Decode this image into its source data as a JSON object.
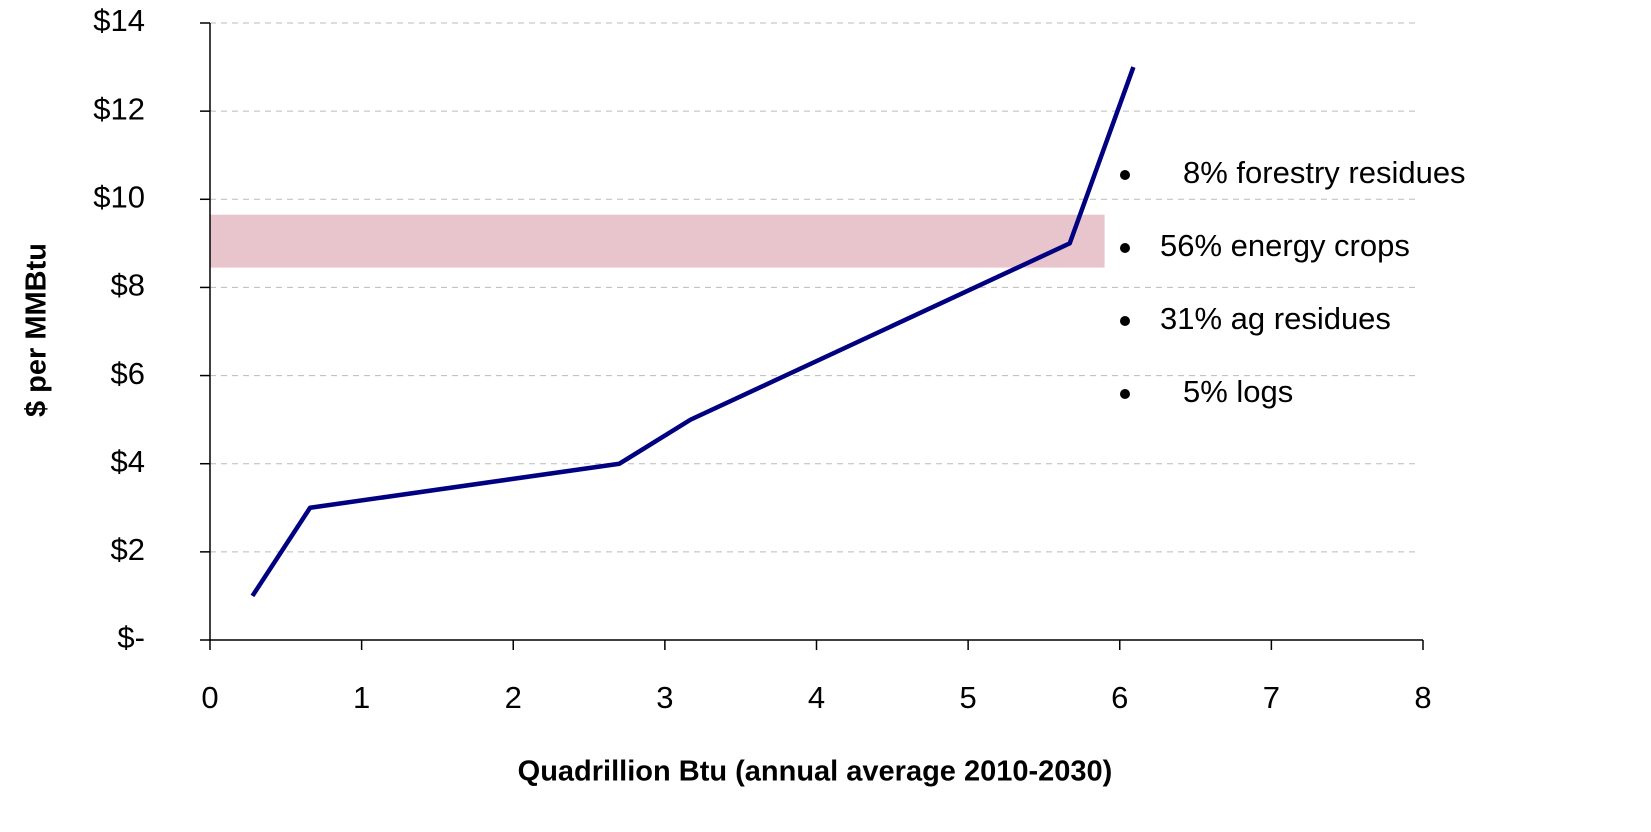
{
  "chart_data": {
    "type": "line",
    "x_label": "Quadrillion Btu (annual average 2010-2030)",
    "y_label": "$ per MMBtu",
    "xlim": [
      0,
      8
    ],
    "xticks": [
      0,
      1,
      2,
      3,
      4,
      5,
      6,
      7,
      8
    ],
    "ylim": [
      0,
      14
    ],
    "yticks": [
      {
        "value": 0,
        "label": "$-"
      },
      {
        "value": 2,
        "label": "$2"
      },
      {
        "value": 4,
        "label": "$4"
      },
      {
        "value": 6,
        "label": "$6"
      },
      {
        "value": 8,
        "label": "$8"
      },
      {
        "value": 10,
        "label": "$10"
      },
      {
        "value": 12,
        "label": "$12"
      },
      {
        "value": 14,
        "label": "$14"
      }
    ],
    "grid": true,
    "series": [
      {
        "color": "#000080",
        "x": [
          0.28,
          0.66,
          2.7,
          3.17,
          5.67,
          6.09
        ],
        "values": [
          1,
          3,
          4,
          5,
          9,
          13
        ]
      }
    ],
    "band": {
      "color": "#e8c4cc",
      "x": [
        0,
        5.9
      ],
      "y": [
        8.45,
        9.65
      ]
    },
    "annotations": [
      "8% forestry residues",
      "56% energy crops",
      "31% ag residues",
      "5% logs"
    ]
  }
}
